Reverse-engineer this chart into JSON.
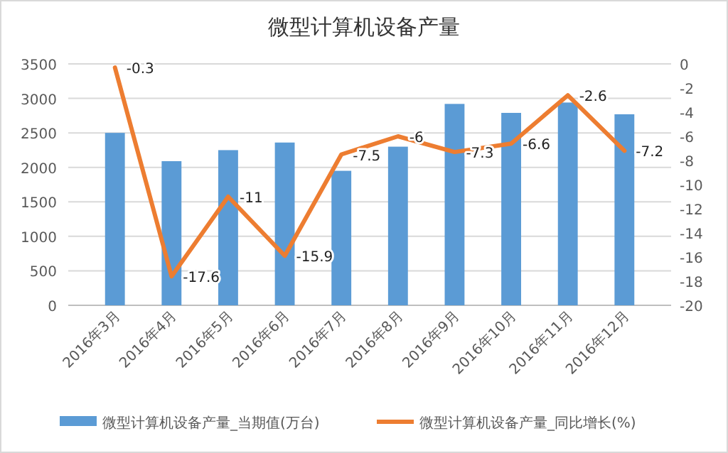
{
  "chart_data": {
    "type": "bar",
    "title": "微型计算机设备产量",
    "categories": [
      "2016年3月",
      "2016年4月",
      "2016年5月",
      "2016年6月",
      "2016年7月",
      "2016年8月",
      "2016年9月",
      "2016年10月",
      "2016年11月",
      "2016年12月"
    ],
    "series": [
      {
        "name": "微型计算机设备产量_当期值(万台)",
        "color": "#5b9bd5",
        "values": [
          2500,
          2090,
          2250,
          2360,
          1950,
          2300,
          2920,
          2790,
          2940,
          2770
        ]
      },
      {
        "name": "微型计算机设备产量_同比增长(%)",
        "type": "line",
        "axis": "y2",
        "color": "#ed7d31",
        "values": [
          -0.3,
          -17.6,
          -11,
          -15.9,
          -7.5,
          -6,
          -7.3,
          -6.6,
          -2.6,
          -7.2
        ],
        "value_labels": [
          "-0.3",
          "-17.6",
          "-11",
          "-15.9",
          "-7.5",
          "-6",
          "-7.3",
          "-6.6",
          "-2.6",
          "-7.2"
        ]
      }
    ],
    "ylim": [
      0,
      3500
    ],
    "yticks": [
      0,
      500,
      1000,
      1500,
      2000,
      2500,
      3000,
      3500
    ],
    "y2lim": [
      -20,
      0
    ],
    "y2ticks": [
      -20,
      -18,
      -16,
      -14,
      -12,
      -10,
      -8,
      -6,
      -4,
      -2,
      0
    ],
    "grid": "y",
    "legend": "bottom",
    "marker": "none",
    "line_style": "solid"
  }
}
